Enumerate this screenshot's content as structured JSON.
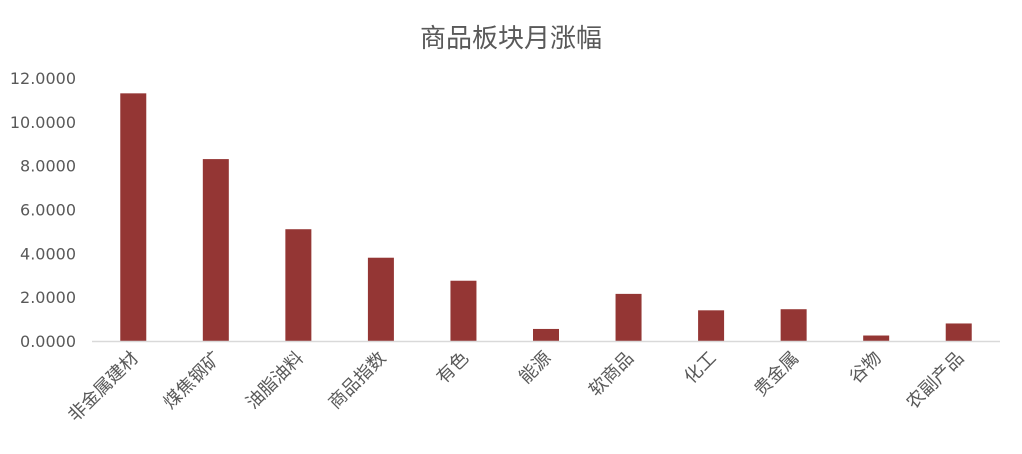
{
  "chart_data": {
    "type": "bar",
    "title": "商品板块月涨幅",
    "categories": [
      "非金属建材",
      "煤焦钢矿",
      "油脂油料",
      "商品指数",
      "有色",
      "能源",
      "软商品",
      "化工",
      "贵金属",
      "谷物",
      "农副产品"
    ],
    "series": [
      {
        "values": [
          11.3,
          8.3,
          5.1,
          3.8,
          2.75,
          0.55,
          2.15,
          1.4,
          1.45,
          0.25,
          0.8
        ],
        "color": "#943634"
      }
    ],
    "yticks": [
      "0.0000",
      "2.0000",
      "4.0000",
      "6.0000",
      "8.0000",
      "10.0000",
      "12.0000"
    ],
    "ylim": [
      0,
      12
    ],
    "xlabel": "",
    "ylabel": "",
    "grid": false,
    "legend": "none"
  }
}
